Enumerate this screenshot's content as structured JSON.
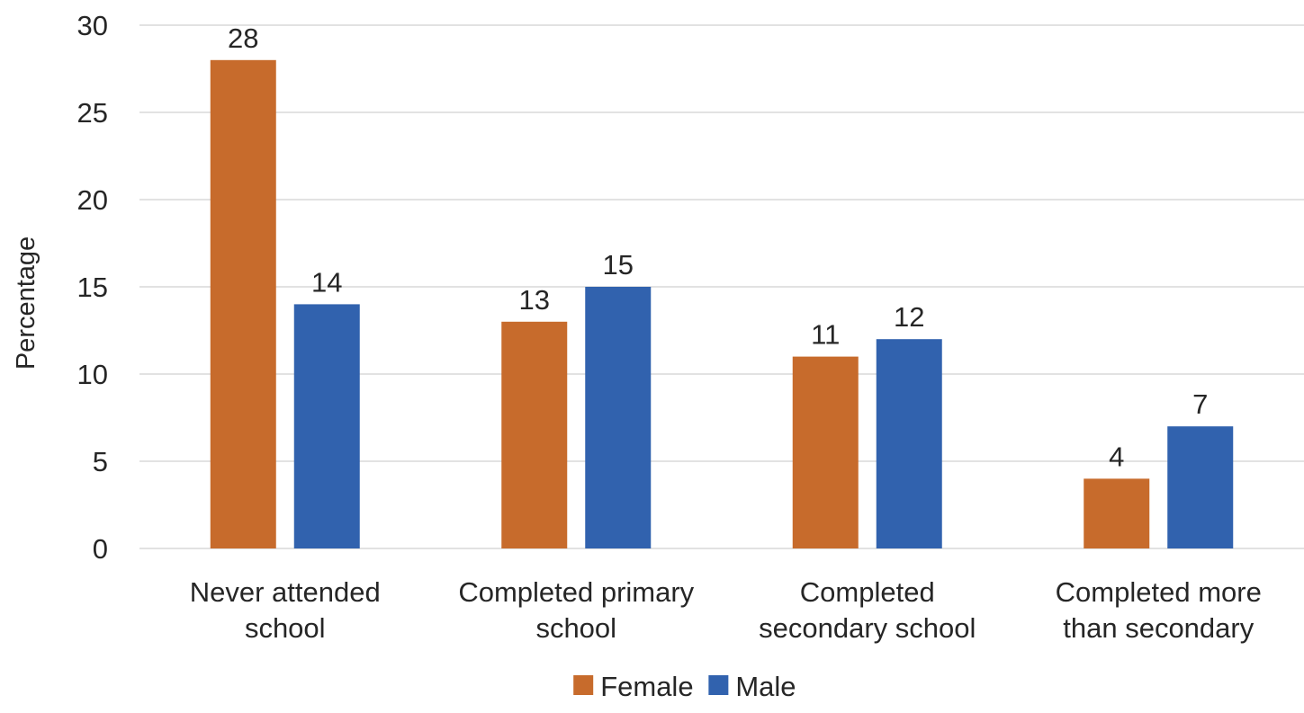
{
  "chart_data": {
    "type": "bar",
    "title": "",
    "xlabel": "",
    "ylabel": "Percentage",
    "ylim": [
      0,
      30
    ],
    "yticks": [
      0,
      5,
      10,
      15,
      20,
      25,
      30
    ],
    "grid": true,
    "legend_position": "bottom",
    "categories": [
      [
        "Never attended",
        "school"
      ],
      [
        "Completed primary",
        "school"
      ],
      [
        "Completed",
        "secondary school"
      ],
      [
        "Completed more",
        "than secondary"
      ]
    ],
    "series": [
      {
        "name": "Female",
        "color": "#c76b2c",
        "values": [
          28,
          13,
          11,
          4
        ]
      },
      {
        "name": "Male",
        "color": "#3162ae",
        "values": [
          14,
          15,
          12,
          7
        ]
      }
    ]
  }
}
